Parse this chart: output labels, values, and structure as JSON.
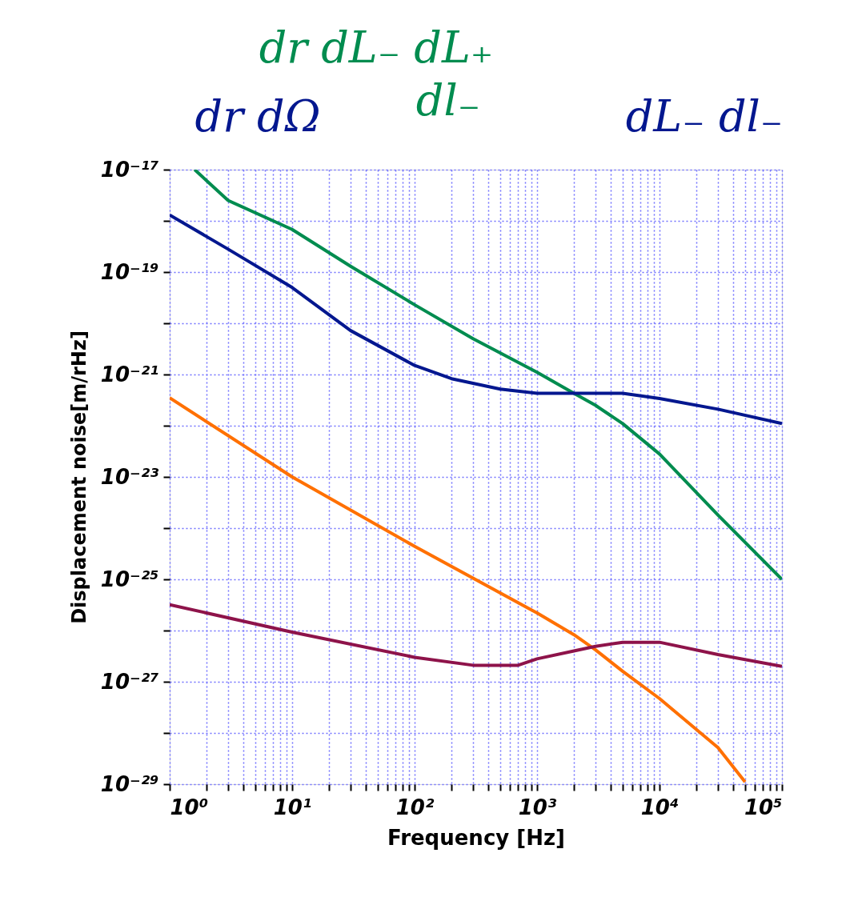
{
  "chart_data": {
    "type": "line",
    "xlabel": "Frequency [Hz]",
    "ylabel": "Displacement noise[m/rHz]",
    "log": "xy",
    "grid": true,
    "line_style": "solid",
    "marker": "none",
    "xlim": [
      1,
      100000
    ],
    "ylim": [
      1e-29,
      1e-17
    ],
    "xticks": [
      {
        "value": 1,
        "label": "10⁰"
      },
      {
        "value": 2,
        "label": null
      },
      {
        "value": 3,
        "label": null
      },
      {
        "value": 4,
        "label": null
      },
      {
        "value": 5,
        "label": null
      },
      {
        "value": 6,
        "label": null
      },
      {
        "value": 7,
        "label": null
      },
      {
        "value": 8,
        "label": null
      },
      {
        "value": 9,
        "label": null
      },
      {
        "value": 10,
        "label": "10¹"
      },
      {
        "value": 20,
        "label": null
      },
      {
        "value": 30,
        "label": null
      },
      {
        "value": 40,
        "label": null
      },
      {
        "value": 50,
        "label": null
      },
      {
        "value": 60,
        "label": null
      },
      {
        "value": 70,
        "label": null
      },
      {
        "value": 80,
        "label": null
      },
      {
        "value": 90,
        "label": null
      },
      {
        "value": 100,
        "label": "10²"
      },
      {
        "value": 200,
        "label": null
      },
      {
        "value": 300,
        "label": null
      },
      {
        "value": 400,
        "label": null
      },
      {
        "value": 500,
        "label": null
      },
      {
        "value": 600,
        "label": null
      },
      {
        "value": 700,
        "label": null
      },
      {
        "value": 800,
        "label": null
      },
      {
        "value": 900,
        "label": null
      },
      {
        "value": 1000,
        "label": "10³"
      },
      {
        "value": 2000,
        "label": null
      },
      {
        "value": 3000,
        "label": null
      },
      {
        "value": 4000,
        "label": null
      },
      {
        "value": 5000,
        "label": null
      },
      {
        "value": 6000,
        "label": null
      },
      {
        "value": 7000,
        "label": null
      },
      {
        "value": 8000,
        "label": null
      },
      {
        "value": 9000,
        "label": null
      },
      {
        "value": 10000,
        "label": "10⁴"
      },
      {
        "value": 20000,
        "label": null
      },
      {
        "value": 30000,
        "label": null
      },
      {
        "value": 40000,
        "label": null
      },
      {
        "value": 50000,
        "label": null
      },
      {
        "value": 60000,
        "label": null
      },
      {
        "value": 70000,
        "label": null
      },
      {
        "value": 80000,
        "label": null
      },
      {
        "value": 90000,
        "label": null
      },
      {
        "value": 100000,
        "label": "10⁵"
      }
    ],
    "yticks": [
      {
        "value": 1e-29,
        "label": "10⁻²⁹"
      },
      {
        "value": 1e-28,
        "label": null
      },
      {
        "value": 1e-27,
        "label": "10⁻²⁷"
      },
      {
        "value": 1e-26,
        "label": null
      },
      {
        "value": 1e-25,
        "label": "10⁻²⁵"
      },
      {
        "value": 1e-24,
        "label": null
      },
      {
        "value": 1e-23,
        "label": "10⁻²³"
      },
      {
        "value": 1e-22,
        "label": null
      },
      {
        "value": 1e-21,
        "label": "10⁻²¹"
      },
      {
        "value": 1e-20,
        "label": null
      },
      {
        "value": 1e-19,
        "label": "10⁻¹⁹"
      },
      {
        "value": 1e-18,
        "label": null
      },
      {
        "value": 1e-17,
        "label": "10⁻¹⁷"
      }
    ],
    "annotations": [
      "dr dL₋ dL₊",
      "dl₋",
      "dr dΩ",
      "dL₋ dl₋"
    ],
    "series": [
      {
        "color": "#008c4f",
        "x": [
          1.6,
          3,
          10,
          30,
          100,
          300,
          1000,
          2000,
          3000,
          5000,
          10000,
          30000,
          100000
        ],
        "values": [
          1e-17,
          2.5e-18,
          6.8e-19,
          1.3e-19,
          2.3e-20,
          5e-21,
          1.1e-21,
          4.3e-22,
          2.5e-22,
          1.1e-22,
          2.8e-23,
          1.8e-24,
          1e-25
        ]
      },
      {
        "color": "#03178f",
        "x": [
          1,
          3,
          10,
          30,
          100,
          200,
          500,
          1000,
          3000,
          5000,
          10000,
          30000,
          100000
        ],
        "values": [
          1.3e-18,
          2.8e-19,
          5e-20,
          7.2e-21,
          1.5e-21,
          8.3e-22,
          5.2e-22,
          4.3e-22,
          4.3e-22,
          4.3e-22,
          3.4e-22,
          2.1e-22,
          1.1e-22
        ]
      },
      {
        "color": "#ff7000",
        "x": [
          1,
          10,
          100,
          1000,
          2000,
          3000,
          5000,
          10000,
          30000,
          50000
        ],
        "values": [
          3.5e-22,
          1e-23,
          4.4e-25,
          2.2e-26,
          8.3e-27,
          4.2e-27,
          1.6e-27,
          4.7e-28,
          5.2e-29,
          1.1e-29
        ]
      },
      {
        "color": "#8e134a",
        "x": [
          1,
          10,
          100,
          300,
          700,
          1000,
          2000,
          3000,
          5000,
          10000,
          30000,
          100000
        ],
        "values": [
          3.2e-26,
          9.3e-27,
          3e-27,
          2.1e-27,
          2.1e-27,
          2.8e-27,
          4e-27,
          4.9e-27,
          5.9e-27,
          5.9e-27,
          3.4e-27,
          2e-27
        ]
      }
    ]
  }
}
